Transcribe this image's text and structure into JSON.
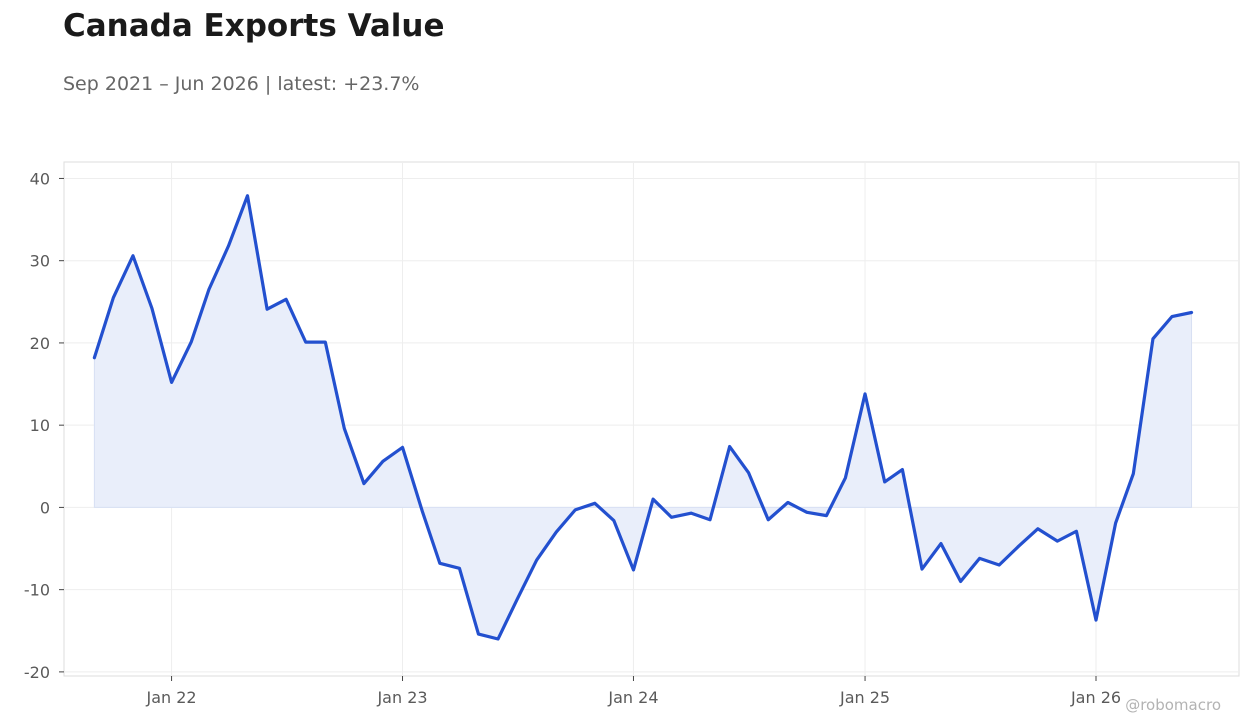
{
  "title": "Canada Exports Value",
  "subtitle": "Sep 2021 – Jun 2026 | latest: +23.7%",
  "watermark": "@robomacro",
  "colors": {
    "line": "#2350cf",
    "fill": "#e9eefa",
    "grid": "#eeeeee",
    "frame": "#dddddd",
    "zero": "#d7dff3"
  },
  "chart_data": {
    "type": "area",
    "title": "Canada Exports Value",
    "subtitle": "Sep 2021 – Jun 2026 | latest: +23.7%",
    "xlabel": "",
    "ylabel": "",
    "xlim": [
      "2021-07-15",
      "2026-08-15"
    ],
    "ylim": [
      -20.5,
      42
    ],
    "grid": true,
    "legend": "none",
    "x_ticks": [
      {
        "date": "2022-01-01",
        "label": "Jan 22"
      },
      {
        "date": "2023-01-01",
        "label": "Jan 23"
      },
      {
        "date": "2024-01-01",
        "label": "Jan 24"
      },
      {
        "date": "2025-01-01",
        "label": "Jan 25"
      },
      {
        "date": "2026-01-01",
        "label": "Jan 26"
      }
    ],
    "y_ticks": [
      {
        "value": 40,
        "label": "40"
      },
      {
        "value": 30,
        "label": "30"
      },
      {
        "value": 20,
        "label": "20"
      },
      {
        "value": 10,
        "label": "10"
      },
      {
        "value": 0,
        "label": "0"
      },
      {
        "value": -10,
        "label": "-10"
      },
      {
        "value": -20,
        "label": "-20"
      }
    ],
    "series": [
      {
        "x": [
          "2021-09",
          "2021-10",
          "2021-11",
          "2021-12",
          "2022-01",
          "2022-02",
          "2022-03",
          "2022-04",
          "2022-05",
          "2022-06",
          "2022-07",
          "2022-08",
          "2022-09",
          "2022-10",
          "2022-11",
          "2022-12",
          "2023-01",
          "2023-02",
          "2023-03",
          "2023-04",
          "2023-05",
          "2023-06",
          "2023-07",
          "2023-08",
          "2023-09",
          "2023-10",
          "2023-11",
          "2023-12",
          "2024-01",
          "2024-02",
          "2024-03",
          "2024-04",
          "2024-05",
          "2024-06",
          "2024-07",
          "2024-08",
          "2024-09",
          "2024-10",
          "2024-11",
          "2024-12",
          "2025-01",
          "2025-02",
          "2025-03",
          "2025-04",
          "2025-05",
          "2025-06",
          "2025-07",
          "2025-08",
          "2025-09",
          "2025-10",
          "2025-11",
          "2025-12",
          "2026-01",
          "2026-02",
          "2026-03",
          "2026-04",
          "2026-05",
          "2026-06"
        ],
        "values": [
          18.2,
          25.5,
          30.6,
          24.2,
          15.2,
          20.1,
          26.5,
          31.8,
          37.9,
          24.1,
          25.3,
          20.1,
          20.1,
          9.6,
          2.9,
          5.6,
          7.3,
          -0.4,
          -6.8,
          -7.4,
          -15.4,
          -16.0,
          -11.2,
          -6.4,
          -3.0,
          -0.3,
          0.5,
          -1.6,
          -7.6,
          1.0,
          -1.2,
          -0.7,
          -1.5,
          7.4,
          4.2,
          -1.5,
          0.6,
          -0.6,
          -1.0,
          3.6,
          13.8,
          3.1,
          4.6,
          -7.5,
          -4.4,
          -9.0,
          -6.2,
          -7.0,
          -4.7,
          -2.6,
          -4.1,
          -2.9,
          -13.7,
          -1.9,
          4.1,
          20.5,
          23.2,
          23.7
        ]
      }
    ]
  }
}
